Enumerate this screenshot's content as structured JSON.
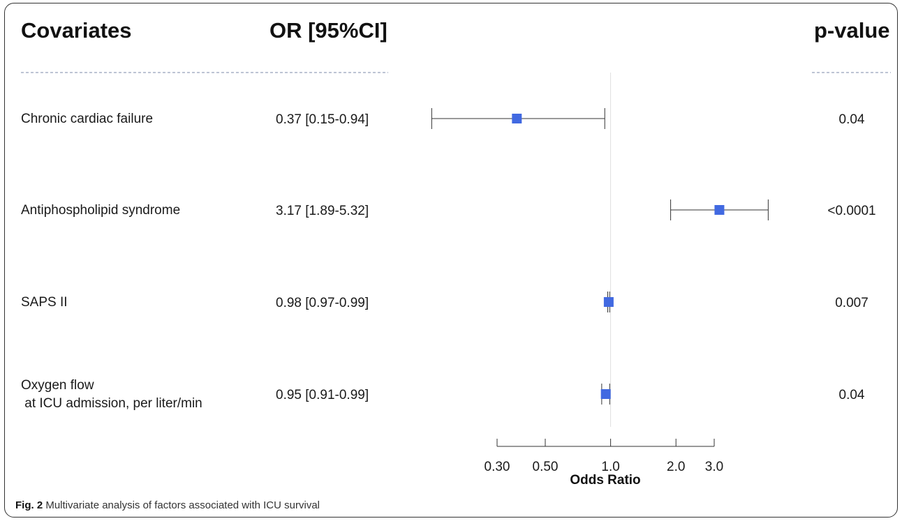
{
  "headers": {
    "covariates": "Covariates",
    "or": "OR [95%CI]",
    "pvalue": "p-value"
  },
  "caption": {
    "label": "Fig. 2",
    "text": "Multivariate analysis of factors associated with ICU survival"
  },
  "rows": [
    {
      "covariate": "Chronic cardiac failure",
      "covariate2": "",
      "or_text": "0.37 [0.15-0.94]",
      "p": "0.04"
    },
    {
      "covariate": "Antiphospholipid syndrome",
      "covariate2": "",
      "or_text": "3.17 [1.89-5.32]",
      "p": "<0.0001"
    },
    {
      "covariate": "SAPS II",
      "covariate2": "",
      "or_text": "0.98 [0.97-0.99]",
      "p": "0.007"
    },
    {
      "covariate": "Oxygen flow",
      "covariate2": " at ICU admission, per liter/min",
      "or_text": "0.95 [0.91-0.99]",
      "p": "0.04"
    }
  ],
  "chart_data": {
    "type": "forest",
    "xlabel": "Odds Ratio",
    "xscale": "log",
    "ticks": [
      0.3,
      0.5,
      1.0,
      2.0,
      3.0
    ],
    "tick_labels": [
      "0.30",
      "0.50",
      "1.0",
      "2.0",
      "3.0"
    ],
    "reference_line": 1.0,
    "marker_color": "#4169e1",
    "series": [
      {
        "name": "Chronic cardiac failure",
        "or": 0.37,
        "lo": 0.15,
        "hi": 0.94
      },
      {
        "name": "Antiphospholipid syndrome",
        "or": 3.17,
        "lo": 1.89,
        "hi": 5.32
      },
      {
        "name": "SAPS II",
        "or": 0.98,
        "lo": 0.97,
        "hi": 0.99
      },
      {
        "name": "Oxygen flow at ICU admission, per liter/min",
        "or": 0.95,
        "lo": 0.91,
        "hi": 0.99
      }
    ]
  }
}
